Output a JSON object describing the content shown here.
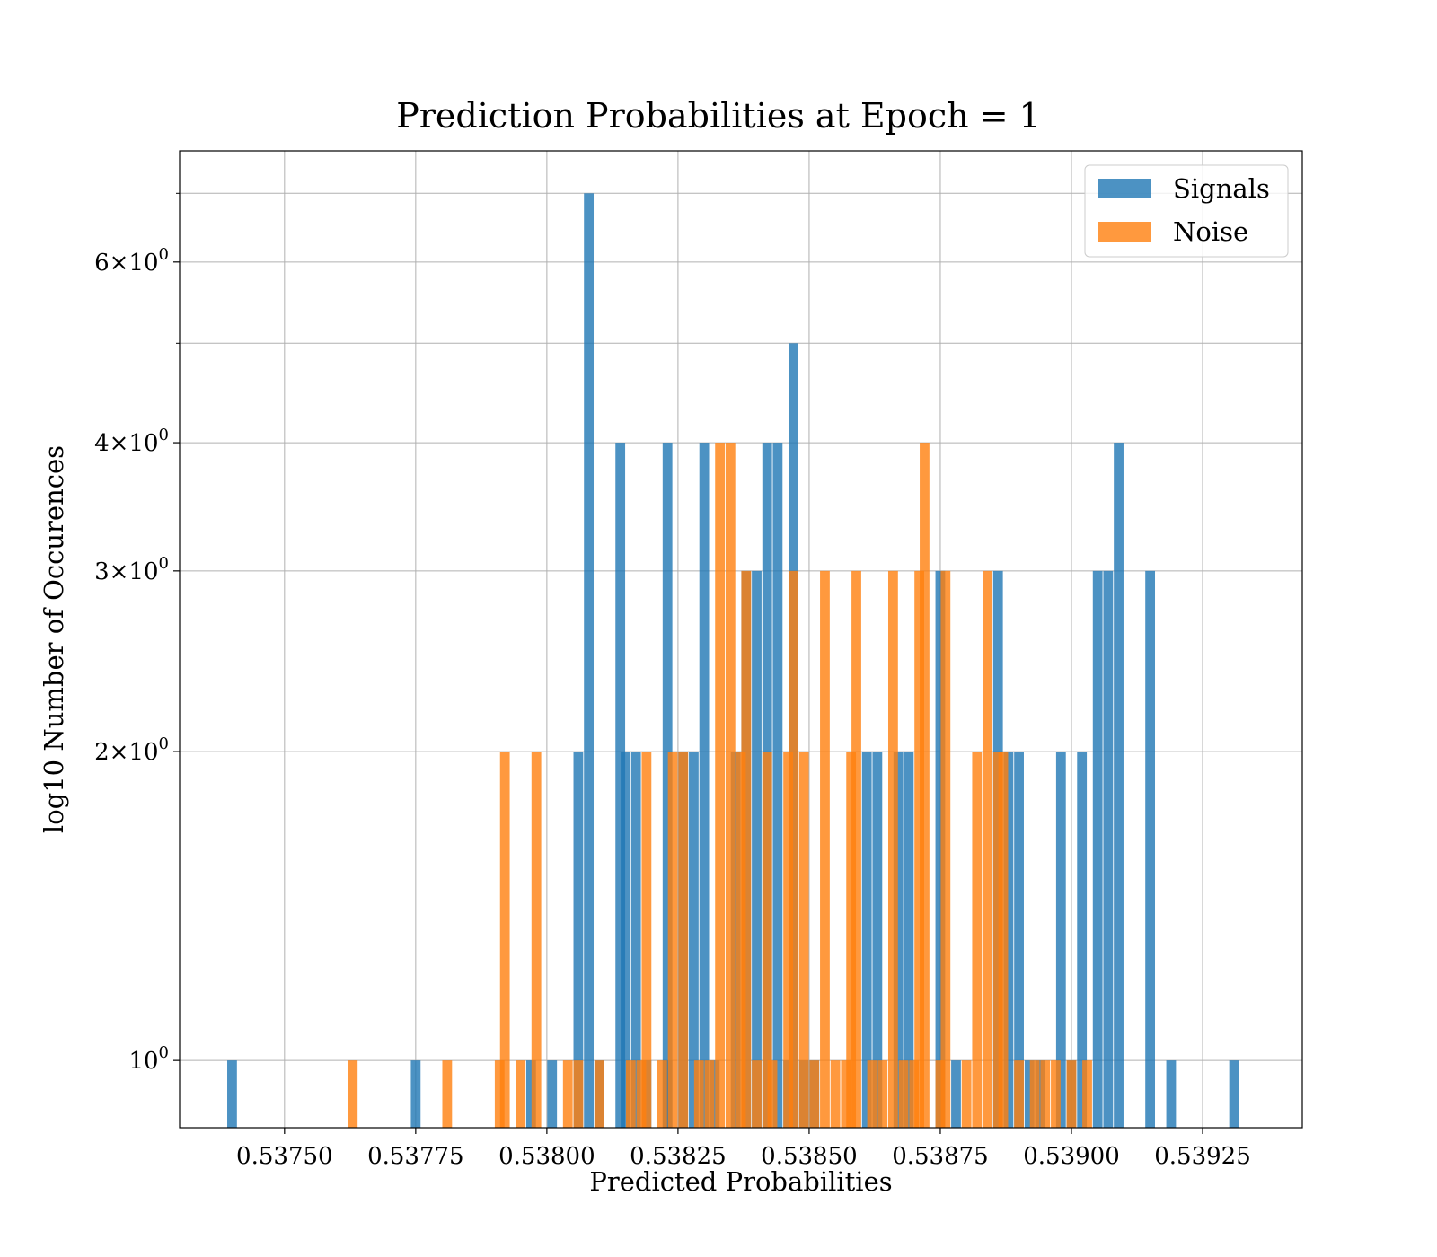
{
  "chart_data": {
    "type": "bar",
    "title": "Prediction Probabilities at Epoch = 1",
    "xlabel": "Predicted Probabilities",
    "ylabel": "log10 Number of Occurences",
    "xlim": [
      0.5373,
      0.53944
    ],
    "ylim": [
      0.86,
      7.7
    ],
    "yscale": "log",
    "grid": true,
    "legend_position": "top-right",
    "bin_width": 1.85e-05,
    "x_ticks": [
      {
        "value": 0.5375,
        "label": "0.53750"
      },
      {
        "value": 0.53775,
        "label": "0.53775"
      },
      {
        "value": 0.538,
        "label": "0.53800"
      },
      {
        "value": 0.53825,
        "label": "0.53825"
      },
      {
        "value": 0.5385,
        "label": "0.53850"
      },
      {
        "value": 0.53875,
        "label": "0.53875"
      },
      {
        "value": 0.539,
        "label": "0.53900"
      },
      {
        "value": 0.53925,
        "label": "0.53925"
      }
    ],
    "y_ticks": [
      {
        "value": 1,
        "base": "10",
        "exp": "0"
      },
      {
        "value": 2,
        "base": "2×10",
        "exp": "0"
      },
      {
        "value": 3,
        "base": "3×10",
        "exp": "0"
      },
      {
        "value": 4,
        "base": "4×10",
        "exp": "0"
      },
      {
        "value": 6,
        "base": "6×10",
        "exp": "0"
      }
    ],
    "y_minor_ticks": [
      5,
      7
    ],
    "series": [
      {
        "name": "Signals",
        "color": "#1f77b4",
        "bins": [
          [
            0.5374,
            1
          ],
          [
            0.53775,
            1
          ],
          [
            0.53797,
            1
          ],
          [
            0.53801,
            1
          ],
          [
            0.53806,
            2
          ],
          [
            0.53808,
            7
          ],
          [
            0.5381,
            1
          ],
          [
            0.53814,
            4
          ],
          [
            0.53815,
            2
          ],
          [
            0.53817,
            2
          ],
          [
            0.53819,
            1
          ],
          [
            0.53823,
            1
          ],
          [
            0.53823,
            4
          ],
          [
            0.53826,
            2
          ],
          [
            0.53828,
            2
          ],
          [
            0.5383,
            4
          ],
          [
            0.53832,
            1
          ],
          [
            0.53836,
            2
          ],
          [
            0.53838,
            3
          ],
          [
            0.5384,
            3
          ],
          [
            0.53842,
            4
          ],
          [
            0.53844,
            4
          ],
          [
            0.53846,
            1
          ],
          [
            0.53847,
            5
          ],
          [
            0.53849,
            1
          ],
          [
            0.53851,
            1
          ],
          [
            0.53861,
            2
          ],
          [
            0.53863,
            2
          ],
          [
            0.53867,
            2
          ],
          [
            0.53869,
            2
          ],
          [
            0.53875,
            3
          ],
          [
            0.53878,
            1
          ],
          [
            0.53886,
            3
          ],
          [
            0.53888,
            2
          ],
          [
            0.5389,
            2
          ],
          [
            0.53892,
            1
          ],
          [
            0.53894,
            1
          ],
          [
            0.53898,
            2
          ],
          [
            0.539,
            1
          ],
          [
            0.53902,
            2
          ],
          [
            0.53905,
            3
          ],
          [
            0.53907,
            3
          ],
          [
            0.53909,
            4
          ],
          [
            0.53915,
            3
          ],
          [
            0.53919,
            1
          ],
          [
            0.53931,
            1
          ]
        ]
      },
      {
        "name": "Noise",
        "color": "#ff7f0e",
        "bins": [
          [
            0.53763,
            1
          ],
          [
            0.53781,
            1
          ],
          [
            0.53791,
            1
          ],
          [
            0.53792,
            2
          ],
          [
            0.53795,
            1
          ],
          [
            0.53798,
            2
          ],
          [
            0.53804,
            1
          ],
          [
            0.53806,
            1
          ],
          [
            0.5381,
            1
          ],
          [
            0.53816,
            1
          ],
          [
            0.53818,
            1
          ],
          [
            0.53819,
            2
          ],
          [
            0.53822,
            1
          ],
          [
            0.53824,
            2
          ],
          [
            0.53826,
            2
          ],
          [
            0.53829,
            1
          ],
          [
            0.53831,
            1
          ],
          [
            0.53833,
            4
          ],
          [
            0.53835,
            4
          ],
          [
            0.53837,
            2
          ],
          [
            0.53838,
            3
          ],
          [
            0.5384,
            1
          ],
          [
            0.53842,
            2
          ],
          [
            0.53843,
            1
          ],
          [
            0.53846,
            2
          ],
          [
            0.53847,
            3
          ],
          [
            0.53849,
            2
          ],
          [
            0.53851,
            1
          ],
          [
            0.53853,
            3
          ],
          [
            0.53855,
            1
          ],
          [
            0.53857,
            1
          ],
          [
            0.53858,
            2
          ],
          [
            0.53859,
            3
          ],
          [
            0.53862,
            1
          ],
          [
            0.53864,
            1
          ],
          [
            0.53866,
            3
          ],
          [
            0.53868,
            1
          ],
          [
            0.5387,
            1
          ],
          [
            0.53871,
            3
          ],
          [
            0.53872,
            4
          ],
          [
            0.53875,
            1
          ],
          [
            0.53876,
            3
          ],
          [
            0.5388,
            1
          ],
          [
            0.53882,
            2
          ],
          [
            0.53884,
            3
          ],
          [
            0.53886,
            2
          ],
          [
            0.53887,
            2
          ],
          [
            0.5389,
            1
          ],
          [
            0.53893,
            1
          ],
          [
            0.53895,
            1
          ],
          [
            0.53897,
            1
          ],
          [
            0.539,
            1
          ],
          [
            0.53903,
            1
          ]
        ]
      }
    ]
  }
}
